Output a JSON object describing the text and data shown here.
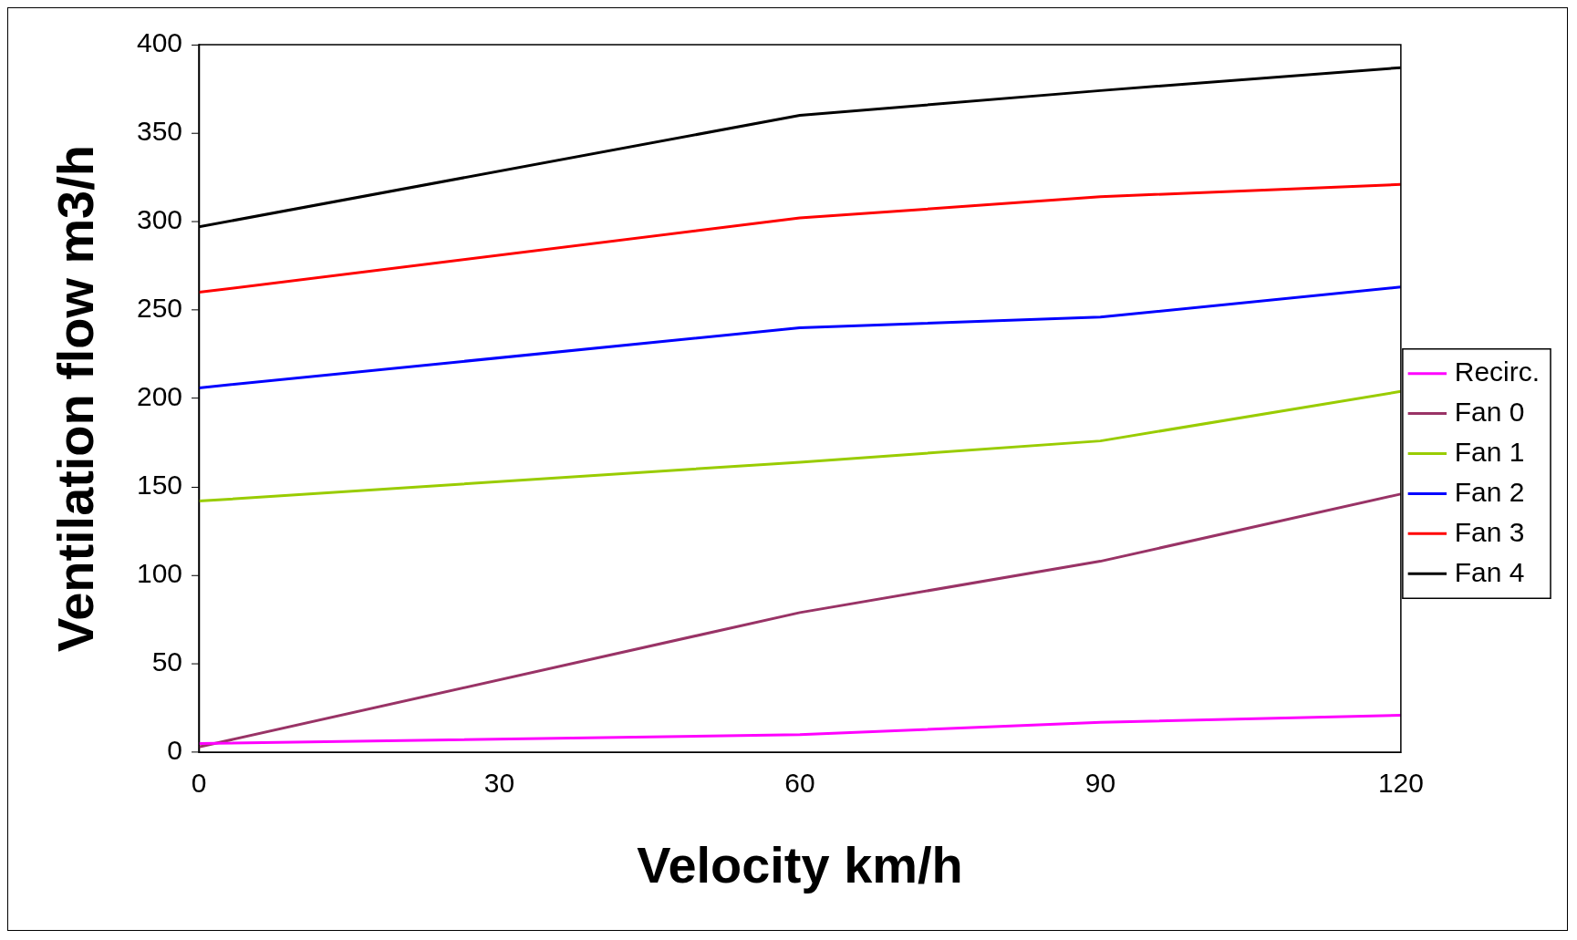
{
  "chart_data": {
    "type": "line",
    "xlabel": "Velocity km/h",
    "ylabel": "Ventilation flow m3/h",
    "x": [
      0,
      60,
      90,
      120
    ],
    "xlim": [
      0,
      120
    ],
    "xticks": [
      0,
      30,
      60,
      90,
      120
    ],
    "ylim": [
      0,
      400
    ],
    "yticks": [
      0,
      50,
      100,
      150,
      200,
      250,
      300,
      350,
      400
    ],
    "grid": false,
    "legend": "right",
    "marker": "none",
    "line_style": "solid",
    "series": [
      {
        "name": "Recirc.",
        "color": "#ff00ff",
        "values": [
          5,
          10,
          17,
          21
        ]
      },
      {
        "name": "Fan 0",
        "color": "#993366",
        "values": [
          3,
          79,
          108,
          146
        ]
      },
      {
        "name": "Fan 1",
        "color": "#99cc00",
        "values": [
          142,
          164,
          176,
          204
        ]
      },
      {
        "name": "Fan 2",
        "color": "#0000ff",
        "values": [
          206,
          240,
          246,
          263
        ]
      },
      {
        "name": "Fan 3",
        "color": "#ff0000",
        "values": [
          260,
          302,
          314,
          321
        ]
      },
      {
        "name": "Fan 4",
        "color": "#000000",
        "values": [
          297,
          360,
          374,
          387
        ]
      }
    ]
  }
}
